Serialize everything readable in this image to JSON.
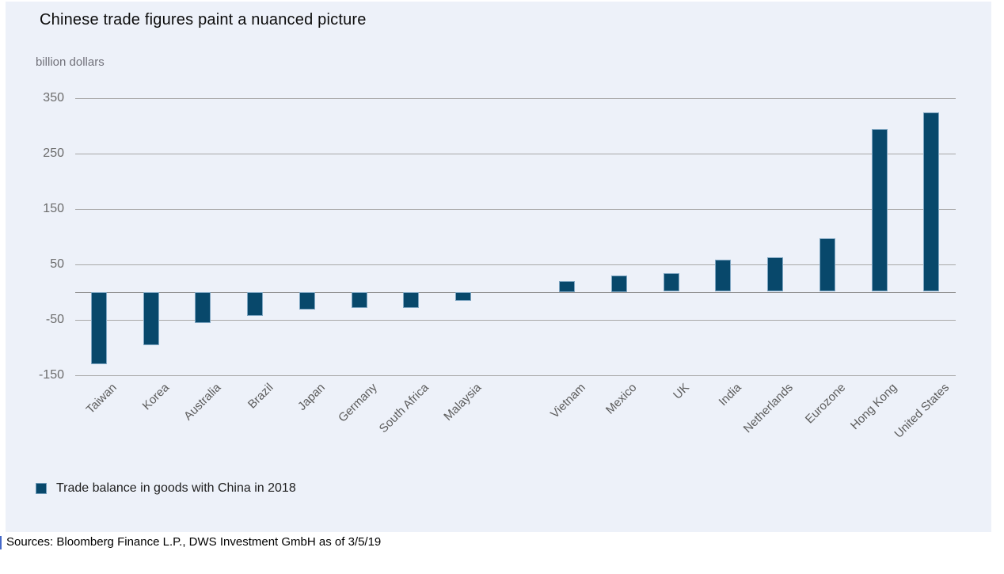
{
  "header": {
    "title": "Chinese trade figures paint a nuanced picture",
    "unit_label": "billion dollars"
  },
  "chart_data": {
    "type": "bar",
    "title": "Chinese trade figures paint a nuanced picture",
    "ylabel": "billion dollars",
    "categories": [
      "Taiwan",
      "Korea",
      "Australia",
      "Brazil",
      "Japan",
      "Germany",
      "South Africa",
      "Malaysia",
      "Vietnam",
      "Mexico",
      "UK",
      "India",
      "Netherlands",
      "Eurozone",
      "Hong Kong",
      "United States"
    ],
    "values": [
      -130,
      -96,
      -57,
      -43,
      -32,
      -29,
      -29,
      -16,
      20,
      30,
      33,
      58,
      62,
      96,
      294,
      324
    ],
    "group_gap_after_index": 7,
    "yticks": [
      350,
      250,
      150,
      50,
      -50,
      -150
    ],
    "ylim": [
      -150,
      390
    ],
    "grid": true,
    "legend_position": "bottom-left",
    "bar_color": "#08486b",
    "bar_edge_color": "#7fa6c2",
    "panel_background": "#edf1f9",
    "gridline_color": "#a8a8a8"
  },
  "legend": {
    "label": "Trade balance in goods with China in 2018",
    "swatch_color": "#08486b"
  },
  "footer": {
    "sources": "Sources: Bloomberg Finance L.P., DWS Investment GmbH as of 3/5/19"
  }
}
